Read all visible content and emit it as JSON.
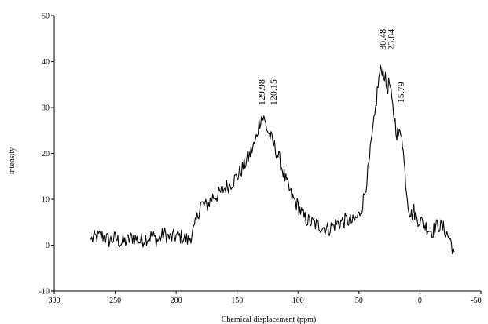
{
  "chart_data": {
    "type": "line",
    "title": "",
    "xlabel": "Chemical displacement (ppm)",
    "ylabel": "intensity",
    "xlim": [
      300,
      -50
    ],
    "ylim": [
      -10,
      50
    ],
    "x_ticks": [
      "300",
      "250",
      "200",
      "150",
      "100",
      "50",
      "0",
      "-50"
    ],
    "y_ticks": [
      "-10",
      "0",
      "10",
      "20",
      "30",
      "40",
      "50"
    ],
    "grid": false,
    "legend": "none",
    "line_color": "#000000",
    "annotations": [
      {
        "text": "129.98",
        "x": 129.98,
        "y": 30.5
      },
      {
        "text": "120.15",
        "x": 120.15,
        "y": 30.5
      },
      {
        "text": "30.48",
        "x": 30.48,
        "y": 42.5
      },
      {
        "text": "23.84",
        "x": 23.84,
        "y": 42.5
      },
      {
        "text": "15.79",
        "x": 15.79,
        "y": 31.0
      }
    ],
    "series": [
      {
        "x": [
          270,
          265,
          260,
          255,
          250,
          245,
          240,
          235,
          230,
          225,
          220,
          215,
          210,
          205,
          200,
          195,
          190,
          185,
          180,
          175,
          170,
          165,
          160,
          155,
          150,
          145,
          140,
          135,
          132,
          130,
          128,
          125,
          120,
          115,
          110,
          105,
          100,
          95,
          90,
          85,
          80,
          75,
          70,
          65,
          60,
          55,
          50,
          47,
          45,
          42,
          40,
          37,
          35,
          33,
          31,
          29,
          27,
          25,
          23,
          21,
          19,
          17,
          15,
          13,
          11,
          9,
          7,
          5,
          3,
          0,
          -5,
          -10,
          -15,
          -20,
          -25,
          -28
        ],
        "y": [
          1.2,
          1.8,
          2.0,
          1.0,
          1.5,
          0.5,
          1.0,
          1.8,
          0.8,
          1.5,
          2.0,
          1.0,
          2.5,
          1.5,
          2.0,
          1.8,
          1.0,
          3.5,
          9.0,
          8.5,
          10.5,
          11.0,
          12.5,
          13.5,
          15.0,
          17.0,
          19.5,
          22.5,
          26.5,
          28.0,
          27.5,
          25.0,
          22.0,
          18.5,
          14.0,
          10.5,
          8.5,
          6.0,
          5.0,
          4.5,
          4.0,
          3.5,
          4.5,
          5.0,
          5.5,
          5.0,
          6.5,
          9.0,
          12.0,
          17.0,
          22.0,
          28.0,
          33.5,
          37.5,
          38.5,
          37.0,
          34.0,
          35.5,
          31.0,
          28.0,
          24.5,
          24.0,
          25.0,
          18.0,
          12.0,
          8.0,
          6.5,
          7.5,
          6.0,
          5.5,
          4.0,
          3.0,
          4.5,
          3.5,
          1.0,
          -1.5
        ]
      }
    ]
  }
}
